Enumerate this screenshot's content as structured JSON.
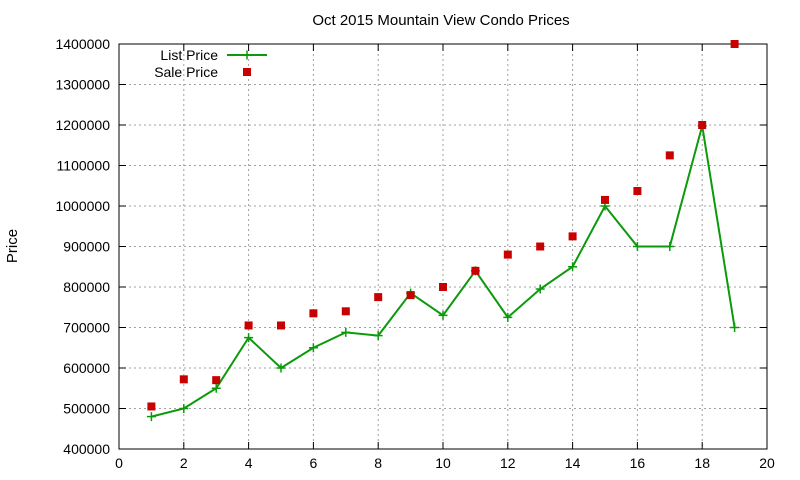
{
  "chart_data": {
    "type": "scatter",
    "title": "Oct 2015 Mountain View Condo Prices",
    "xlabel": "",
    "ylabel": "Price",
    "xlim": [
      0,
      20
    ],
    "ylim": [
      400000,
      1400000
    ],
    "xticks": [
      0,
      2,
      4,
      6,
      8,
      10,
      12,
      14,
      16,
      18,
      20
    ],
    "yticks": [
      400000,
      500000,
      600000,
      700000,
      800000,
      900000,
      1000000,
      1100000,
      1200000,
      1300000,
      1400000
    ],
    "grid": true,
    "legend_position": "top-left",
    "series": [
      {
        "name": "List Price",
        "style": "line-plus",
        "color": "#0a9a0a",
        "x": [
          1,
          2,
          3,
          4,
          5,
          6,
          7,
          8,
          9,
          10,
          11,
          12,
          13,
          14,
          15,
          16,
          17,
          18,
          19
        ],
        "values": [
          480000,
          500000,
          550000,
          675000,
          600000,
          650000,
          688000,
          680000,
          785000,
          730000,
          840000,
          725000,
          795000,
          850000,
          1000000,
          900000,
          900000,
          1198000,
          700000
        ]
      },
      {
        "name": "Sale Price",
        "style": "square",
        "color": "#c80000",
        "x": [
          1,
          2,
          3,
          4,
          5,
          6,
          7,
          8,
          9,
          10,
          11,
          12,
          13,
          14,
          15,
          16,
          17,
          18,
          19
        ],
        "values": [
          505000,
          572000,
          570000,
          705000,
          705000,
          735000,
          740000,
          775000,
          780000,
          800000,
          840000,
          880000,
          900000,
          925000,
          1015000,
          1037000,
          1125000,
          1200000,
          1400000
        ]
      }
    ]
  }
}
